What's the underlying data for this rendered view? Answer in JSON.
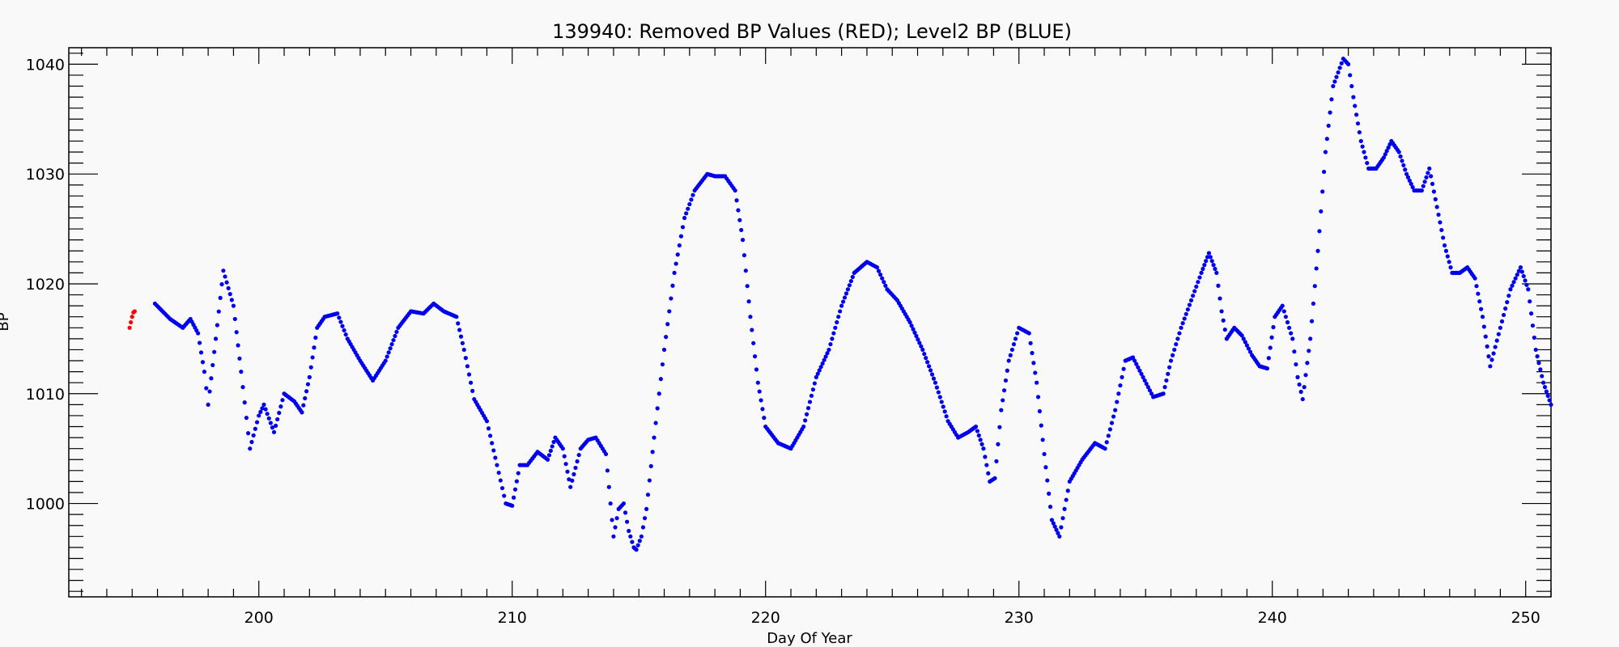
{
  "chart_data": {
    "type": "scatter",
    "title": "139940: Removed BP Values (RED); Level2 BP (BLUE)",
    "xlabel": "Day Of Year",
    "ylabel": "BP",
    "xlim": [
      192.5,
      251
    ],
    "ylim": [
      991.5,
      1041.5
    ],
    "x_ticks": [
      200,
      210,
      220,
      230,
      240,
      250
    ],
    "y_ticks": [
      1000,
      1010,
      1020,
      1030,
      1040
    ],
    "x_tick_labels": [
      "200",
      "210",
      "220",
      "230",
      "240",
      "250"
    ],
    "y_tick_labels": [
      "1000",
      "1010",
      "1020",
      "1030",
      "1040"
    ],
    "x_minor_step": 1,
    "y_minor_step": 1,
    "grid": false,
    "legend": "none",
    "series": [
      {
        "color": "#ff0000",
        "x": [
          194.9,
          194.95,
          195.0,
          195.05,
          195.1
        ],
        "y": [
          1016.0,
          1016.5,
          1017.0,
          1017.4,
          1017.5
        ]
      },
      {
        "color": "#0000ee",
        "x": [
          195.9,
          196.5,
          197.0,
          197.3,
          197.6,
          197.85,
          198.0,
          198.3,
          198.6,
          199.0,
          199.3,
          199.65,
          200.0,
          200.2,
          200.6,
          201.0,
          201.4,
          201.7,
          202.0,
          202.3,
          202.6,
          203.1,
          203.5,
          204.0,
          204.5,
          205.0,
          205.5,
          206.0,
          206.5,
          206.9,
          207.3,
          207.8,
          208.1,
          208.5,
          209.0,
          209.4,
          209.75,
          210.0,
          210.3,
          210.6,
          211.0,
          211.4,
          211.7,
          212.0,
          212.3,
          212.7,
          213.0,
          213.3,
          213.7,
          214.0,
          214.2,
          214.4,
          214.6,
          214.8,
          214.9,
          215.1,
          215.3,
          215.6,
          216.0,
          216.4,
          216.8,
          217.2,
          217.7,
          218.0,
          218.4,
          218.8,
          219.1,
          219.4,
          219.7,
          220.0,
          220.5,
          221.0,
          221.5,
          222.0,
          222.5,
          223.0,
          223.5,
          224.0,
          224.4,
          224.8,
          225.2,
          225.7,
          226.2,
          226.7,
          227.2,
          227.6,
          228.0,
          228.3,
          228.6,
          228.85,
          229.05,
          229.3,
          229.6,
          230.0,
          230.4,
          230.7,
          231.0,
          231.3,
          231.6,
          232.0,
          232.5,
          233.0,
          233.4,
          233.8,
          234.2,
          234.5,
          234.9,
          235.3,
          235.7,
          236.0,
          236.4,
          236.8,
          237.2,
          237.5,
          237.8,
          238.0,
          238.2,
          238.5,
          238.8,
          239.2,
          239.5,
          239.8,
          240.1,
          240.4,
          240.8,
          241.0,
          241.2,
          241.5,
          241.8,
          242.1,
          242.4,
          242.8,
          243.0,
          243.2,
          243.5,
          243.8,
          244.1,
          244.4,
          244.7,
          245.0,
          245.3,
          245.6,
          245.9,
          246.2,
          246.5,
          246.8,
          247.1,
          247.4,
          247.7,
          248.0,
          248.3,
          248.6,
          249.0,
          249.4,
          249.8,
          250.1,
          250.4,
          250.7,
          251.0
        ],
        "y": [
          1018.2,
          1016.8,
          1016.0,
          1016.8,
          1015.5,
          1012.0,
          1009.0,
          1015.0,
          1021.2,
          1018.0,
          1012.0,
          1005.0,
          1008.0,
          1009.0,
          1006.5,
          1010.0,
          1009.3,
          1008.3,
          1011.5,
          1016.0,
          1017.0,
          1017.3,
          1015.0,
          1013.0,
          1011.2,
          1013.0,
          1016.0,
          1017.5,
          1017.3,
          1018.2,
          1017.5,
          1017.0,
          1014.0,
          1009.5,
          1007.5,
          1003.5,
          1000.0,
          999.8,
          1003.5,
          1003.5,
          1004.7,
          1004.0,
          1006.0,
          1005.0,
          1001.5,
          1005.0,
          1005.8,
          1006.0,
          1004.5,
          997.0,
          999.5,
          1000.0,
          997.5,
          996.0,
          995.8,
          997.0,
          999.5,
          1006.0,
          1014.0,
          1021.0,
          1026.0,
          1028.5,
          1030.0,
          1029.8,
          1029.8,
          1028.5,
          1024.0,
          1017.0,
          1011.0,
          1007.0,
          1005.5,
          1005.0,
          1007.0,
          1011.5,
          1014.0,
          1018.0,
          1021.0,
          1022.0,
          1021.5,
          1019.5,
          1018.5,
          1016.5,
          1014.0,
          1011.0,
          1007.5,
          1006.0,
          1006.5,
          1007.0,
          1005.0,
          1002.0,
          1002.3,
          1008.5,
          1013.0,
          1016.0,
          1015.5,
          1011.0,
          1004.5,
          998.5,
          997.0,
          1002.0,
          1004.0,
          1005.5,
          1005.0,
          1008.5,
          1013.0,
          1013.3,
          1011.5,
          1009.7,
          1010.0,
          1013.0,
          1016.0,
          1018.5,
          1021.0,
          1022.8,
          1021.0,
          1017.5,
          1015.0,
          1016.0,
          1015.3,
          1013.5,
          1012.5,
          1012.3,
          1017.0,
          1018.0,
          1015.0,
          1011.5,
          1009.5,
          1015.0,
          1023.0,
          1032.0,
          1038.0,
          1040.5,
          1040.0,
          1037.0,
          1033.0,
          1030.5,
          1030.5,
          1031.5,
          1033.0,
          1032.0,
          1030.0,
          1028.5,
          1028.5,
          1030.5,
          1027.0,
          1023.5,
          1021.0,
          1021.0,
          1021.5,
          1020.5,
          1017.0,
          1012.5,
          1016.0,
          1019.5,
          1021.5,
          1019.5,
          1014.0,
          1011.0,
          1009.0
        ]
      }
    ]
  }
}
